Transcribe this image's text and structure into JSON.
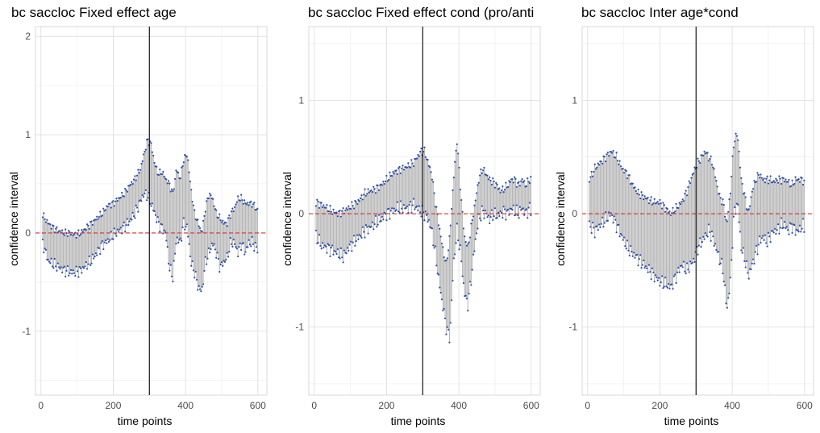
{
  "chart_data": [
    {
      "type": "errorbar",
      "title": "bc saccloc Fixed effect age",
      "xlabel": "time points",
      "ylabel": "confidence interval",
      "xlim": [
        -15,
        625
      ],
      "ylim": [
        -1.65,
        2.1
      ],
      "xticks": [
        0,
        200,
        400,
        600
      ],
      "yticks": [
        -1,
        0,
        1,
        2
      ],
      "vline_x": 300,
      "hline_y": 0,
      "grid": true,
      "colors": {
        "points": "#2f4fa8",
        "band": "#b5b5b5",
        "vline": "#000000",
        "hline": "#d93030"
      },
      "x": [
        5,
        20,
        35,
        50,
        65,
        80,
        95,
        110,
        125,
        140,
        155,
        170,
        185,
        200,
        215,
        230,
        245,
        260,
        275,
        285,
        295,
        305,
        315,
        325,
        335,
        345,
        355,
        365,
        375,
        385,
        395,
        405,
        415,
        425,
        435,
        445,
        455,
        465,
        475,
        485,
        495,
        505,
        515,
        525,
        535,
        545,
        555,
        565,
        575,
        585,
        595,
        605
      ],
      "lower": [
        -0.1,
        -0.28,
        -0.32,
        -0.35,
        -0.38,
        -0.4,
        -0.4,
        -0.38,
        -0.33,
        -0.28,
        -0.2,
        -0.12,
        -0.08,
        -0.02,
        0.02,
        0.06,
        0.12,
        0.2,
        0.32,
        0.4,
        0.38,
        0.3,
        0.2,
        0.1,
        0.05,
        0.0,
        -0.35,
        -0.45,
        -0.05,
        -0.1,
        0.1,
        0.05,
        -0.3,
        -0.4,
        -0.55,
        -0.6,
        -0.3,
        -0.2,
        -0.1,
        -0.2,
        -0.35,
        -0.3,
        -0.25,
        -0.1,
        -0.1,
        -0.2,
        -0.1,
        -0.2,
        -0.1,
        -0.1,
        -0.15,
        -0.2
      ],
      "upper": [
        0.18,
        0.1,
        0.05,
        0.02,
        0.0,
        0.0,
        -0.02,
        0.0,
        0.05,
        0.1,
        0.15,
        0.2,
        0.28,
        0.3,
        0.35,
        0.4,
        0.48,
        0.55,
        0.65,
        0.8,
        0.95,
        0.9,
        0.7,
        0.6,
        0.62,
        0.55,
        0.5,
        0.4,
        0.65,
        0.55,
        0.75,
        0.8,
        0.45,
        0.2,
        0.1,
        0.0,
        0.25,
        0.4,
        0.35,
        0.2,
        0.15,
        0.1,
        0.1,
        0.2,
        0.25,
        0.35,
        0.35,
        0.3,
        0.3,
        0.3,
        0.25,
        0.2
      ]
    },
    {
      "type": "errorbar",
      "title": "bc saccloc Fixed effect cond (pro/anti",
      "xlabel": "time points",
      "ylabel": "confidence interval",
      "xlim": [
        -15,
        625
      ],
      "ylim": [
        -1.6,
        1.65
      ],
      "xticks": [
        0,
        200,
        400,
        600
      ],
      "yticks": [
        -1,
        0,
        1
      ],
      "vline_x": 300,
      "hline_y": 0,
      "grid": true,
      "colors": {
        "points": "#2f4fa8",
        "band": "#b5b5b5",
        "vline": "#000000",
        "hline": "#d93030"
      },
      "x": [
        5,
        20,
        35,
        50,
        65,
        80,
        95,
        110,
        125,
        140,
        155,
        170,
        185,
        200,
        215,
        230,
        245,
        260,
        275,
        285,
        295,
        305,
        315,
        325,
        335,
        345,
        355,
        365,
        375,
        385,
        395,
        405,
        415,
        425,
        435,
        445,
        455,
        465,
        475,
        485,
        495,
        505,
        515,
        525,
        535,
        545,
        555,
        565,
        575,
        585,
        595,
        605
      ],
      "lower": [
        -0.2,
        -0.28,
        -0.3,
        -0.32,
        -0.35,
        -0.38,
        -0.3,
        -0.25,
        -0.2,
        -0.15,
        -0.12,
        -0.08,
        -0.05,
        0.0,
        0.02,
        0.05,
        0.05,
        0.05,
        0.08,
        0.05,
        0.02,
        0.0,
        -0.05,
        -0.15,
        -0.35,
        -0.6,
        -0.8,
        -1.0,
        -1.1,
        -0.45,
        -0.15,
        -0.35,
        -0.7,
        -0.8,
        -0.55,
        -0.25,
        -0.05,
        0.02,
        0.0,
        -0.05,
        0.0,
        -0.02,
        0.0,
        0.02,
        0.0,
        0.05,
        0.02,
        0.0,
        0.05,
        0.0,
        0.05,
        0.0
      ],
      "upper": [
        0.1,
        0.08,
        0.05,
        0.02,
        0.0,
        0.02,
        0.05,
        0.08,
        0.12,
        0.18,
        0.2,
        0.22,
        0.25,
        0.3,
        0.35,
        0.38,
        0.4,
        0.42,
        0.45,
        0.5,
        0.55,
        0.55,
        0.45,
        0.35,
        0.1,
        -0.1,
        -0.3,
        -0.45,
        -0.2,
        0.3,
        0.65,
        0.2,
        -0.2,
        -0.3,
        -0.1,
        0.1,
        0.3,
        0.4,
        0.35,
        0.3,
        0.28,
        0.25,
        0.2,
        0.22,
        0.25,
        0.3,
        0.3,
        0.25,
        0.3,
        0.25,
        0.3,
        0.3
      ]
    },
    {
      "type": "errorbar",
      "title": "bc saccloc Inter age*cond",
      "xlabel": "time points",
      "ylabel": "confidence interval",
      "xlim": [
        -15,
        625
      ],
      "ylim": [
        -1.6,
        1.65
      ],
      "xticks": [
        0,
        200,
        400,
        600
      ],
      "yticks": [
        -1,
        0,
        1
      ],
      "vline_x": 300,
      "hline_y": 0,
      "grid": true,
      "colors": {
        "points": "#2f4fa8",
        "band": "#b5b5b5",
        "vline": "#000000",
        "hline": "#d93030"
      },
      "x": [
        5,
        20,
        35,
        50,
        65,
        80,
        95,
        110,
        125,
        140,
        155,
        170,
        185,
        200,
        215,
        230,
        245,
        260,
        275,
        285,
        295,
        305,
        315,
        325,
        335,
        345,
        355,
        365,
        375,
        385,
        395,
        405,
        415,
        425,
        435,
        445,
        455,
        465,
        475,
        485,
        495,
        505,
        515,
        525,
        535,
        545,
        555,
        565,
        575,
        585,
        595,
        605
      ],
      "lower": [
        -0.1,
        -0.15,
        -0.1,
        -0.05,
        0.0,
        -0.1,
        -0.2,
        -0.3,
        -0.35,
        -0.4,
        -0.45,
        -0.5,
        -0.55,
        -0.6,
        -0.62,
        -0.65,
        -0.55,
        -0.45,
        -0.5,
        -0.45,
        -0.4,
        -0.3,
        -0.25,
        -0.2,
        -0.15,
        -0.2,
        -0.3,
        -0.4,
        -0.5,
        -0.85,
        -0.6,
        0.0,
        0.1,
        -0.3,
        -0.4,
        -0.55,
        -0.45,
        -0.35,
        -0.25,
        -0.2,
        -0.25,
        -0.2,
        -0.15,
        -0.15,
        -0.1,
        -0.1,
        -0.15,
        -0.1,
        -0.15,
        -0.15,
        -0.1,
        -0.2
      ],
      "upper": [
        0.3,
        0.4,
        0.45,
        0.5,
        0.55,
        0.5,
        0.4,
        0.35,
        0.25,
        0.18,
        0.15,
        0.12,
        0.1,
        0.1,
        0.05,
        0.0,
        0.05,
        0.1,
        0.2,
        0.3,
        0.38,
        0.45,
        0.5,
        0.55,
        0.5,
        0.45,
        0.3,
        0.15,
        0.1,
        -0.1,
        0.2,
        0.65,
        0.7,
        0.3,
        0.15,
        0.0,
        0.2,
        0.3,
        0.35,
        0.3,
        0.3,
        0.3,
        0.28,
        0.3,
        0.3,
        0.3,
        0.28,
        0.25,
        0.3,
        0.3,
        0.3,
        0.25
      ]
    }
  ]
}
